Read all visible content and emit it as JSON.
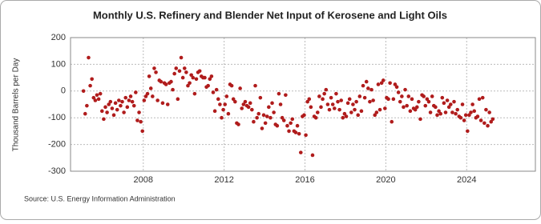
{
  "chart_data": {
    "type": "scatter",
    "title": "Monthly U.S. Refinery and Blender Net Input of Kerosene and Light Oils",
    "y_label": "Thousand Barrels per Day",
    "source": "Source: U.S. Energy Information Administration",
    "color": "#b01c1c",
    "grid": true,
    "xlim": [
      2004.4,
      2027.4
    ],
    "xticks": [
      2008,
      2012,
      2016,
      2020,
      2024
    ],
    "ylim": [
      -300,
      200
    ],
    "yticks": [
      -300,
      -200,
      -100,
      0,
      100,
      200
    ],
    "x": [
      2005.042,
      2005.125,
      2005.208,
      2005.292,
      2005.375,
      2005.458,
      2005.542,
      2005.625,
      2005.708,
      2005.792,
      2005.875,
      2005.958,
      2006.042,
      2006.125,
      2006.208,
      2006.292,
      2006.375,
      2006.458,
      2006.542,
      2006.625,
      2006.708,
      2006.792,
      2006.875,
      2006.958,
      2007.042,
      2007.125,
      2007.208,
      2007.292,
      2007.375,
      2007.458,
      2007.542,
      2007.625,
      2007.708,
      2007.792,
      2007.875,
      2007.958,
      2008.042,
      2008.125,
      2008.208,
      2008.292,
      2008.375,
      2008.458,
      2008.542,
      2008.625,
      2008.708,
      2008.792,
      2008.875,
      2008.958,
      2009.042,
      2009.125,
      2009.208,
      2009.292,
      2009.375,
      2009.458,
      2009.542,
      2009.625,
      2009.708,
      2009.792,
      2009.875,
      2009.958,
      2010.042,
      2010.125,
      2010.208,
      2010.292,
      2010.375,
      2010.458,
      2010.542,
      2010.625,
      2010.708,
      2010.792,
      2010.875,
      2010.958,
      2011.042,
      2011.125,
      2011.208,
      2011.292,
      2011.375,
      2011.458,
      2011.542,
      2011.625,
      2011.708,
      2011.792,
      2011.875,
      2011.958,
      2012.042,
      2012.125,
      2012.208,
      2012.292,
      2012.375,
      2012.458,
      2012.542,
      2012.625,
      2012.708,
      2012.792,
      2012.875,
      2012.958,
      2013.042,
      2013.125,
      2013.208,
      2013.292,
      2013.375,
      2013.458,
      2013.542,
      2013.625,
      2013.708,
      2013.792,
      2013.875,
      2013.958,
      2014.042,
      2014.125,
      2014.208,
      2014.292,
      2014.375,
      2014.458,
      2014.542,
      2014.625,
      2014.708,
      2014.792,
      2014.875,
      2014.958,
      2015.042,
      2015.125,
      2015.208,
      2015.292,
      2015.375,
      2015.458,
      2015.542,
      2015.625,
      2015.708,
      2015.792,
      2015.875,
      2015.958,
      2016.042,
      2016.125,
      2016.208,
      2016.292,
      2016.375,
      2016.458,
      2016.542,
      2016.625,
      2016.708,
      2016.792,
      2016.875,
      2016.958,
      2017.042,
      2017.125,
      2017.208,
      2017.292,
      2017.375,
      2017.458,
      2017.542,
      2017.625,
      2017.708,
      2017.792,
      2017.875,
      2017.958,
      2018.042,
      2018.125,
      2018.208,
      2018.292,
      2018.375,
      2018.458,
      2018.542,
      2018.625,
      2018.708,
      2018.792,
      2018.875,
      2018.958,
      2019.042,
      2019.125,
      2019.208,
      2019.292,
      2019.375,
      2019.458,
      2019.542,
      2019.625,
      2019.708,
      2019.792,
      2019.875,
      2019.958,
      2020.042,
      2020.125,
      2020.208,
      2020.292,
      2020.375,
      2020.458,
      2020.542,
      2020.625,
      2020.708,
      2020.792,
      2020.875,
      2020.958,
      2021.042,
      2021.125,
      2021.208,
      2021.292,
      2021.375,
      2021.458,
      2021.542,
      2021.625,
      2021.708,
      2021.792,
      2021.875,
      2021.958,
      2022.042,
      2022.125,
      2022.208,
      2022.292,
      2022.375,
      2022.458,
      2022.542,
      2022.625,
      2022.708,
      2022.792,
      2022.875,
      2022.958,
      2023.042,
      2023.125,
      2023.208,
      2023.292,
      2023.375,
      2023.458,
      2023.542,
      2023.625,
      2023.708,
      2023.792,
      2023.875,
      2023.958,
      2024.042,
      2024.125,
      2024.208,
      2024.292,
      2024.375,
      2024.458,
      2024.542,
      2024.625,
      2024.708,
      2024.792,
      2024.875,
      2024.958,
      2025.042,
      2025.125,
      2025.208,
      2025.292
    ],
    "values": [
      0,
      -85,
      -55,
      125,
      20,
      45,
      -25,
      -35,
      -15,
      -30,
      -10,
      -75,
      -105,
      -60,
      -80,
      -50,
      -40,
      -65,
      -90,
      -45,
      -70,
      -35,
      -55,
      -40,
      -80,
      -25,
      -60,
      -35,
      -20,
      -40,
      -55,
      -5,
      -110,
      -80,
      -115,
      -150,
      -35,
      -20,
      -10,
      55,
      10,
      -20,
      85,
      70,
      -35,
      40,
      35,
      -45,
      30,
      25,
      -50,
      30,
      35,
      5,
      65,
      85,
      -30,
      75,
      125,
      50,
      85,
      70,
      20,
      30,
      60,
      50,
      -10,
      45,
      70,
      75,
      55,
      50,
      50,
      15,
      20,
      45,
      55,
      -5,
      -75,
      5,
      -30,
      -50,
      -100,
      -70,
      -50,
      -20,
      -85,
      25,
      20,
      -30,
      -40,
      -120,
      -125,
      10,
      -65,
      -50,
      -40,
      -55,
      -60,
      -45,
      -70,
      -115,
      20,
      -100,
      -85,
      -25,
      -140,
      -90,
      -120,
      -95,
      -60,
      -100,
      -45,
      -80,
      -125,
      -130,
      -10,
      -50,
      -100,
      -110,
      -15,
      -130,
      -150,
      -120,
      -105,
      -150,
      -155,
      -130,
      -160,
      -230,
      -95,
      -90,
      -165,
      -40,
      -30,
      -60,
      -240,
      -95,
      -100,
      -80,
      -20,
      -60,
      -30,
      -10,
      5,
      -50,
      -70,
      -25,
      -50,
      -65,
      -10,
      -40,
      -70,
      -35,
      -100,
      -85,
      -95,
      -45,
      -30,
      -80,
      -50,
      -70,
      -40,
      -90,
      -20,
      -75,
      20,
      -25,
      35,
      10,
      -40,
      5,
      -35,
      -90,
      -80,
      25,
      -70,
      30,
      40,
      -65,
      -25,
      -30,
      30,
      -115,
      -30,
      25,
      15,
      -5,
      -40,
      -20,
      -60,
      5,
      -55,
      -20,
      -75,
      -30,
      -65,
      -70,
      -60,
      -40,
      -105,
      -15,
      -20,
      -55,
      -30,
      -40,
      -80,
      -20,
      -55,
      -60,
      -90,
      -75,
      -85,
      -25,
      -45,
      -80,
      -35,
      -60,
      -50,
      -80,
      -40,
      -85,
      -70,
      -95,
      -100,
      -50,
      -110,
      -90,
      -150,
      -90,
      -80,
      -50,
      -75,
      -100,
      -95,
      -30,
      -110,
      -25,
      -120,
      -70,
      -130,
      -80,
      -115,
      -105
    ]
  }
}
